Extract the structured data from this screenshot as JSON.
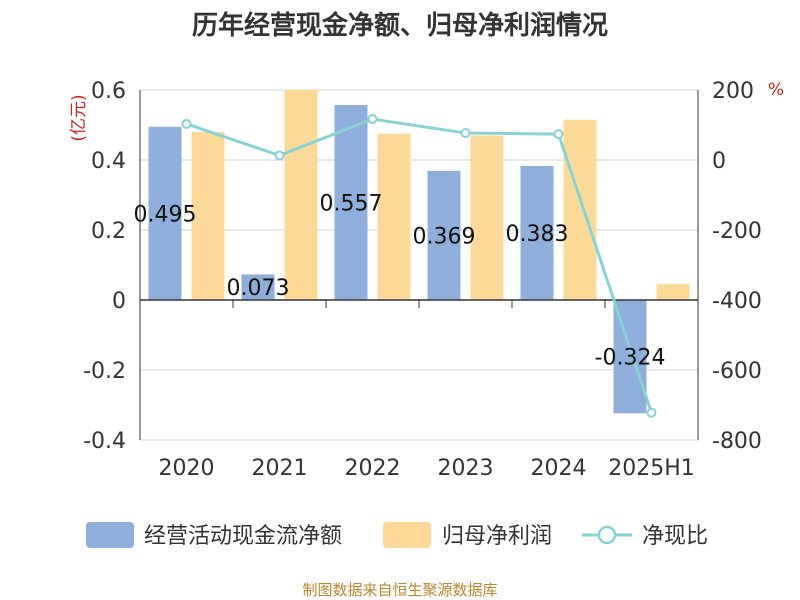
{
  "chart_data": {
    "type": "bar",
    "title": "历年经营现金净额、归母净利润情况",
    "categories": [
      "2020",
      "2021",
      "2022",
      "2023",
      "2024",
      "2025H1"
    ],
    "series": [
      {
        "name": "经营活动现金流净额",
        "kind": "bar",
        "axis": "left",
        "color": "#8eaedc",
        "values": [
          0.495,
          0.073,
          0.557,
          0.369,
          0.383,
          -0.324
        ],
        "labels": [
          "0.495",
          "0.073",
          "0.557",
          "0.369",
          "0.383",
          "-0.324"
        ]
      },
      {
        "name": "归母净利润",
        "kind": "bar",
        "axis": "left",
        "color": "#fdd998",
        "values": [
          0.48,
          0.6,
          0.475,
          0.47,
          0.515,
          0.045
        ]
      },
      {
        "name": "净现比",
        "kind": "line",
        "axis": "right",
        "color": "#86d3d6",
        "values": [
          103,
          13,
          117,
          77,
          74,
          -722
        ]
      }
    ],
    "y_left": {
      "unit": "(亿元)",
      "range": [
        -0.4,
        0.6
      ],
      "ticks": [
        0.6,
        0.4,
        0.2,
        0,
        -0.2,
        -0.4
      ],
      "tick_labels": [
        "0.6",
        "0.4",
        "0.2",
        "0",
        "-0.2",
        "-0.4"
      ]
    },
    "y_right": {
      "unit": "%",
      "range": [
        -800,
        200
      ],
      "ticks": [
        200,
        0,
        -200,
        -400,
        -600,
        -800
      ],
      "tick_labels": [
        "200",
        "0",
        "-200",
        "-400",
        "-600",
        "-800"
      ]
    },
    "grid": true,
    "legend_position": "bottom"
  },
  "source": "制图数据来自恒生聚源数据库"
}
